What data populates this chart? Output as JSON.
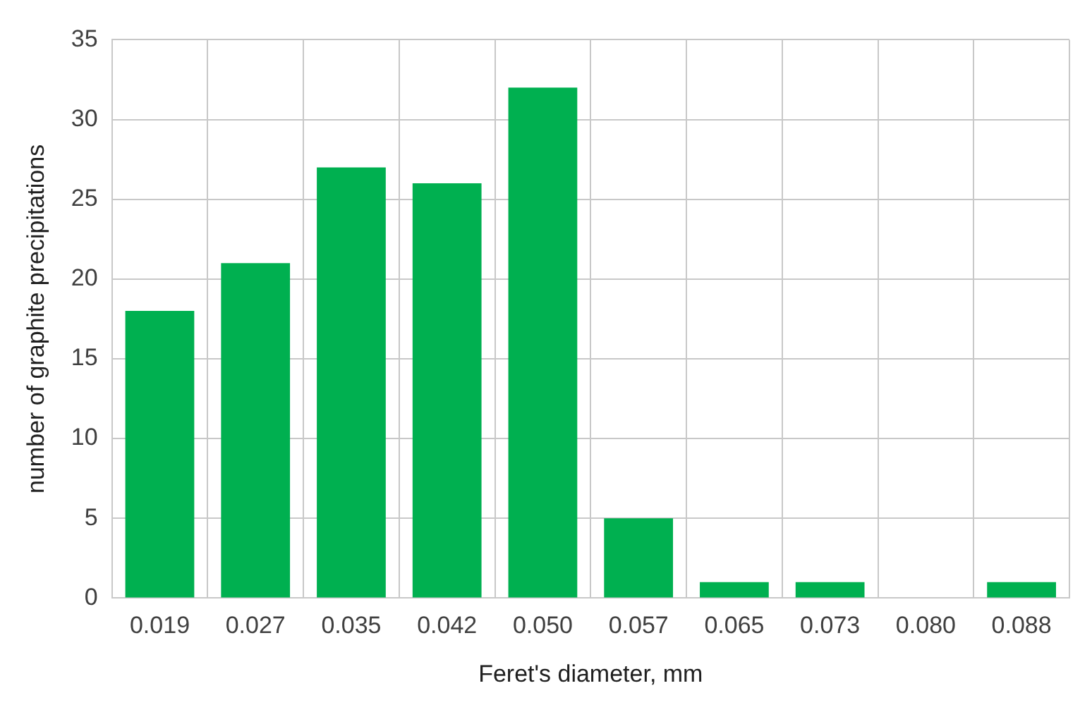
{
  "chart_data": {
    "type": "bar",
    "xlabel": "Feret's diameter, mm",
    "ylabel": "number of graphite precipitations",
    "categories": [
      "0.019",
      "0.027",
      "0.035",
      "0.042",
      "0.050",
      "0.057",
      "0.065",
      "0.073",
      "0.080",
      "0.088"
    ],
    "values": [
      18,
      21,
      27,
      26,
      32,
      5,
      1,
      1,
      0,
      1
    ],
    "color": "#00b050",
    "ylim": [
      0,
      35
    ],
    "yticks": [
      0,
      5,
      10,
      15,
      20,
      25,
      30,
      35
    ],
    "grid": true,
    "legend": false
  }
}
